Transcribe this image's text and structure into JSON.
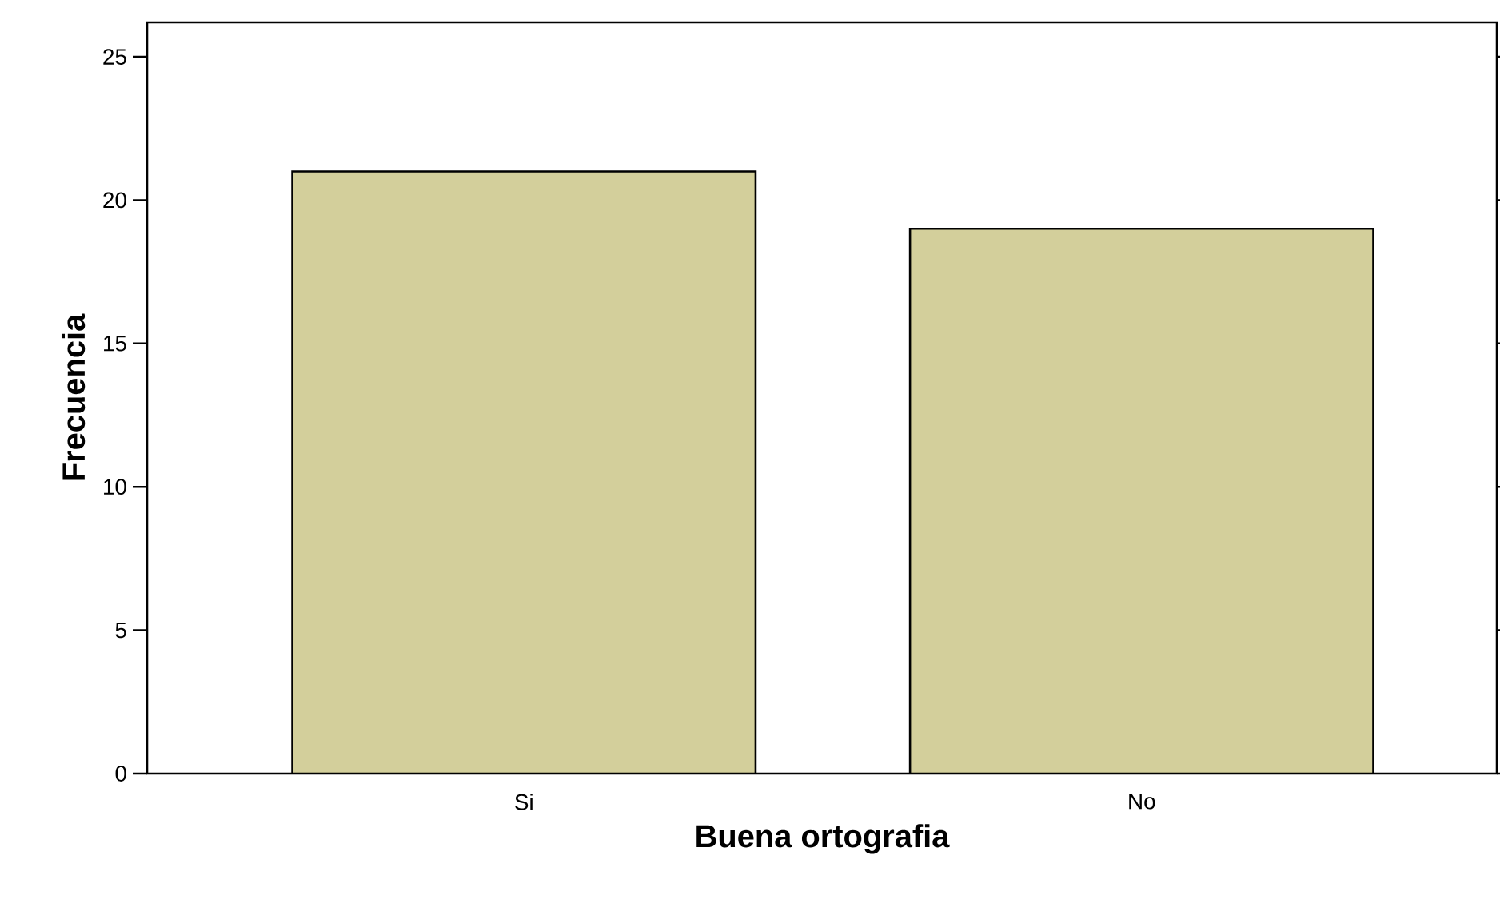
{
  "chart_data": {
    "type": "bar",
    "xlabel": "Buena ortografia",
    "ylabel": "Frecuencia",
    "categories": [
      "Si",
      "No"
    ],
    "values": [
      21,
      19
    ],
    "color": "#d3cf9b",
    "ylim": [
      0,
      26.2
    ],
    "yticks": [
      0,
      5,
      10,
      15,
      20,
      25
    ]
  }
}
